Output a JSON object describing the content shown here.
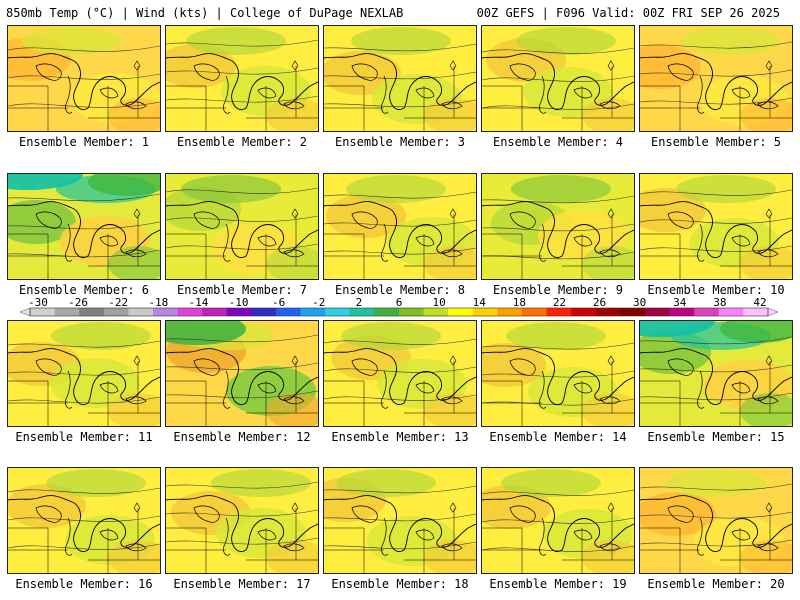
{
  "header": {
    "left": "850mb Temp (°C) | Wind (kts) | College of DuPage NEXLAB",
    "right": "00Z GEFS | F096 Valid: 00Z FRI SEP 26 2025"
  },
  "members": [
    {
      "label": "Ensemble Member: 1",
      "dominant": "orange-yellow"
    },
    {
      "label": "Ensemble Member: 2",
      "dominant": "yellow"
    },
    {
      "label": "Ensemble Member: 3",
      "dominant": "yellow"
    },
    {
      "label": "Ensemble Member: 4",
      "dominant": "yellow"
    },
    {
      "label": "Ensemble Member: 5",
      "dominant": "orange-yellow"
    },
    {
      "label": "Ensemble Member: 6",
      "dominant": "green-teal"
    },
    {
      "label": "Ensemble Member: 7",
      "dominant": "yellow-green"
    },
    {
      "label": "Ensemble Member: 8",
      "dominant": "yellow"
    },
    {
      "label": "Ensemble Member: 9",
      "dominant": "yellow-green"
    },
    {
      "label": "Ensemble Member: 10",
      "dominant": "yellow"
    },
    {
      "label": "Ensemble Member: 11",
      "dominant": "yellow"
    },
    {
      "label": "Ensemble Member: 12",
      "dominant": "orange-green"
    },
    {
      "label": "Ensemble Member: 13",
      "dominant": "yellow"
    },
    {
      "label": "Ensemble Member: 14",
      "dominant": "yellow"
    },
    {
      "label": "Ensemble Member: 15",
      "dominant": "green-teal"
    },
    {
      "label": "Ensemble Member: 16",
      "dominant": "yellow"
    },
    {
      "label": "Ensemble Member: 17",
      "dominant": "yellow"
    },
    {
      "label": "Ensemble Member: 18",
      "dominant": "yellow"
    },
    {
      "label": "Ensemble Member: 19",
      "dominant": "yellow"
    },
    {
      "label": "Ensemble Member: 20",
      "dominant": "orange-yellow"
    }
  ],
  "colorbar": {
    "labels": [
      "-30",
      "-26",
      "-22",
      "-18",
      "-14",
      "-10",
      "-6",
      "-2",
      "2",
      "6",
      "10",
      "14",
      "18",
      "22",
      "26",
      "30",
      "34",
      "38",
      "42"
    ],
    "colors": [
      "#d0d0d0",
      "#a8a8a8",
      "#808080",
      "#a0a0a0",
      "#c8c8c8",
      "#b488e0",
      "#e040e0",
      "#c020c0",
      "#8000c0",
      "#3030c0",
      "#2060f0",
      "#20a0f0",
      "#30d0e0",
      "#20c0a0",
      "#40b040",
      "#80c020",
      "#c0e020",
      "#ffff00",
      "#ffd000",
      "#ffa000",
      "#ff7000",
      "#ff2000",
      "#d00000",
      "#a00000",
      "#800000",
      "#a00040",
      "#c00080",
      "#e040c0",
      "#ff80ff",
      "#ffc0ff"
    ]
  }
}
